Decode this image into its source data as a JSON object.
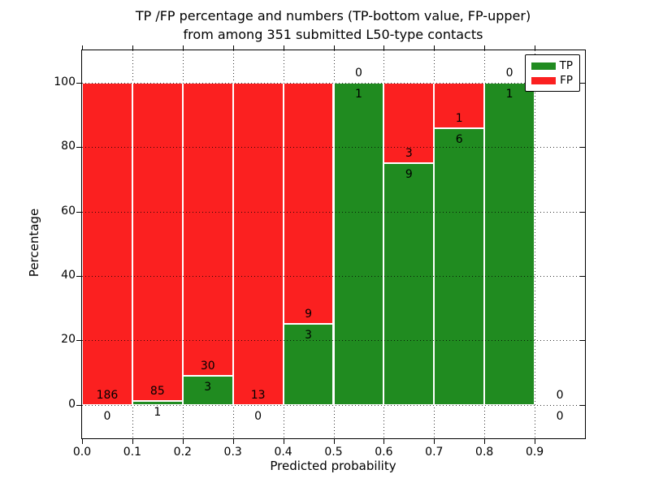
{
  "figure": {
    "title_line1": "TP /FP percentage and numbers (TP-bottom value, FP-upper)",
    "title_line2": "from among 351 submitted L50-type contacts"
  },
  "chart_data": {
    "type": "bar",
    "stacked": true,
    "title_line1": "TP /FP percentage and numbers (TP-bottom value, FP-upper)",
    "title_line2": "from among 351 submitted L50-type contacts",
    "xlabel": "Predicted probability",
    "ylabel": "Percentage",
    "total_contacts": 351,
    "xlim": [
      0.0,
      1.0
    ],
    "ylim": [
      -10.4,
      110.0
    ],
    "bin_width": 0.1,
    "x_tick_labels": [
      "0.0",
      "0.1",
      "0.2",
      "0.3",
      "0.4",
      "0.5",
      "0.6",
      "0.7",
      "0.8",
      "0.9"
    ],
    "y_tick_values": [
      0,
      20,
      40,
      60,
      80,
      100
    ],
    "grid": true,
    "legend_position": "upper right",
    "series": [
      {
        "name": "TP",
        "color": "#208b20"
      },
      {
        "name": "FP",
        "color": "#fb2020"
      }
    ],
    "bins": [
      {
        "range": "0.0-0.1",
        "tp": 0,
        "fp": 186,
        "tp_pct": 0.0,
        "fp_pct": 100.0
      },
      {
        "range": "0.1-0.2",
        "tp": 1,
        "fp": 85,
        "tp_pct": 1.16,
        "fp_pct": 98.84
      },
      {
        "range": "0.2-0.3",
        "tp": 3,
        "fp": 30,
        "tp_pct": 9.09,
        "fp_pct": 90.91
      },
      {
        "range": "0.3-0.4",
        "tp": 0,
        "fp": 13,
        "tp_pct": 0.0,
        "fp_pct": 100.0
      },
      {
        "range": "0.4-0.5",
        "tp": 3,
        "fp": 9,
        "tp_pct": 25.0,
        "fp_pct": 75.0
      },
      {
        "range": "0.5-0.6",
        "tp": 1,
        "fp": 0,
        "tp_pct": 100.0,
        "fp_pct": 0.0
      },
      {
        "range": "0.6-0.7",
        "tp": 9,
        "fp": 3,
        "tp_pct": 75.0,
        "fp_pct": 25.0
      },
      {
        "range": "0.7-0.8",
        "tp": 6,
        "fp": 1,
        "tp_pct": 85.71,
        "fp_pct": 14.29
      },
      {
        "range": "0.8-0.9",
        "tp": 1,
        "fp": 0,
        "tp_pct": 100.0,
        "fp_pct": 0.0
      },
      {
        "range": "0.9-1.0",
        "tp": 0,
        "fp": 0,
        "tp_pct": 0.0,
        "fp_pct": 0.0
      }
    ]
  }
}
